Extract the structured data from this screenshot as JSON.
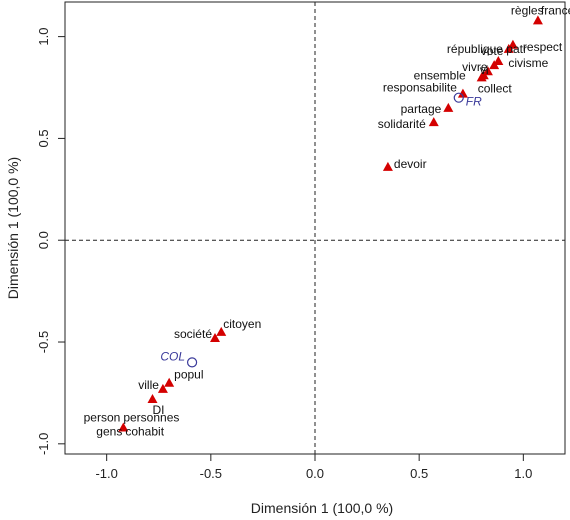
{
  "chart_data": {
    "type": "scatter",
    "xlabel": "Dimensión 1 (100,0 %)",
    "ylabel": "Dimensión 1 (100,0 %)",
    "xlim": [
      -1.2,
      1.2
    ],
    "ylim": [
      -1.05,
      1.17
    ],
    "xticks": [
      -1.0,
      -0.5,
      0.0,
      0.5,
      1.0
    ],
    "xtick_labels": [
      "-1.0",
      "-0.5",
      "0.0",
      "0.5",
      "1.0"
    ],
    "yticks": [
      -1.0,
      -0.5,
      0.0,
      0.5,
      1.0
    ],
    "ytick_labels": [
      "-1.0",
      "-0.5",
      "0.0",
      "0.5",
      "1.0"
    ],
    "reference_lines": {
      "x": 0,
      "y": 0,
      "style": "dashed"
    },
    "colors": {
      "points": "#d40000",
      "supplementary": "#3a3a9a",
      "axis": "#222222"
    },
    "points": [
      {
        "label": "règles",
        "x": 1.07,
        "y": 1.08
      },
      {
        "label": "france",
        "x": 1.07,
        "y": 1.08
      },
      {
        "label": "république patr",
        "x": 0.95,
        "y": 0.96
      },
      {
        "label": "vote",
        "x": 0.93,
        "y": 0.94
      },
      {
        "label": "respect",
        "x": 0.95,
        "y": 0.96
      },
      {
        "label": "civisme",
        "x": 0.88,
        "y": 0.88
      },
      {
        "label": "vivre",
        "x": 0.86,
        "y": 0.86
      },
      {
        "label": "vi",
        "x": 0.83,
        "y": 0.83
      },
      {
        "label": "ensemble",
        "x": 0.8,
        "y": 0.8
      },
      {
        "label": "collect",
        "x": 0.81,
        "y": 0.81
      },
      {
        "label": "responsabilite",
        "x": 0.71,
        "y": 0.72
      },
      {
        "label": "partage",
        "x": 0.64,
        "y": 0.65
      },
      {
        "label": "solidarité",
        "x": 0.57,
        "y": 0.58
      },
      {
        "label": "devoir",
        "x": 0.35,
        "y": 0.36
      },
      {
        "label": "citoyen",
        "x": -0.45,
        "y": -0.45
      },
      {
        "label": "société",
        "x": -0.48,
        "y": -0.48
      },
      {
        "label": "popul",
        "x": -0.7,
        "y": -0.7
      },
      {
        "label": "ville",
        "x": -0.73,
        "y": -0.73
      },
      {
        "label": "DI",
        "x": -0.78,
        "y": -0.78
      },
      {
        "label": "person",
        "x": -0.92,
        "y": -0.92
      },
      {
        "label": "personnes",
        "x": -0.92,
        "y": -0.92
      },
      {
        "label": "gens",
        "x": -0.92,
        "y": -0.92
      },
      {
        "label": "cohabit",
        "x": -0.92,
        "y": -0.92
      }
    ],
    "supplementary": [
      {
        "label": "FR",
        "x": 0.69,
        "y": 0.7
      },
      {
        "label": "COL",
        "x": -0.59,
        "y": -0.6
      }
    ]
  }
}
